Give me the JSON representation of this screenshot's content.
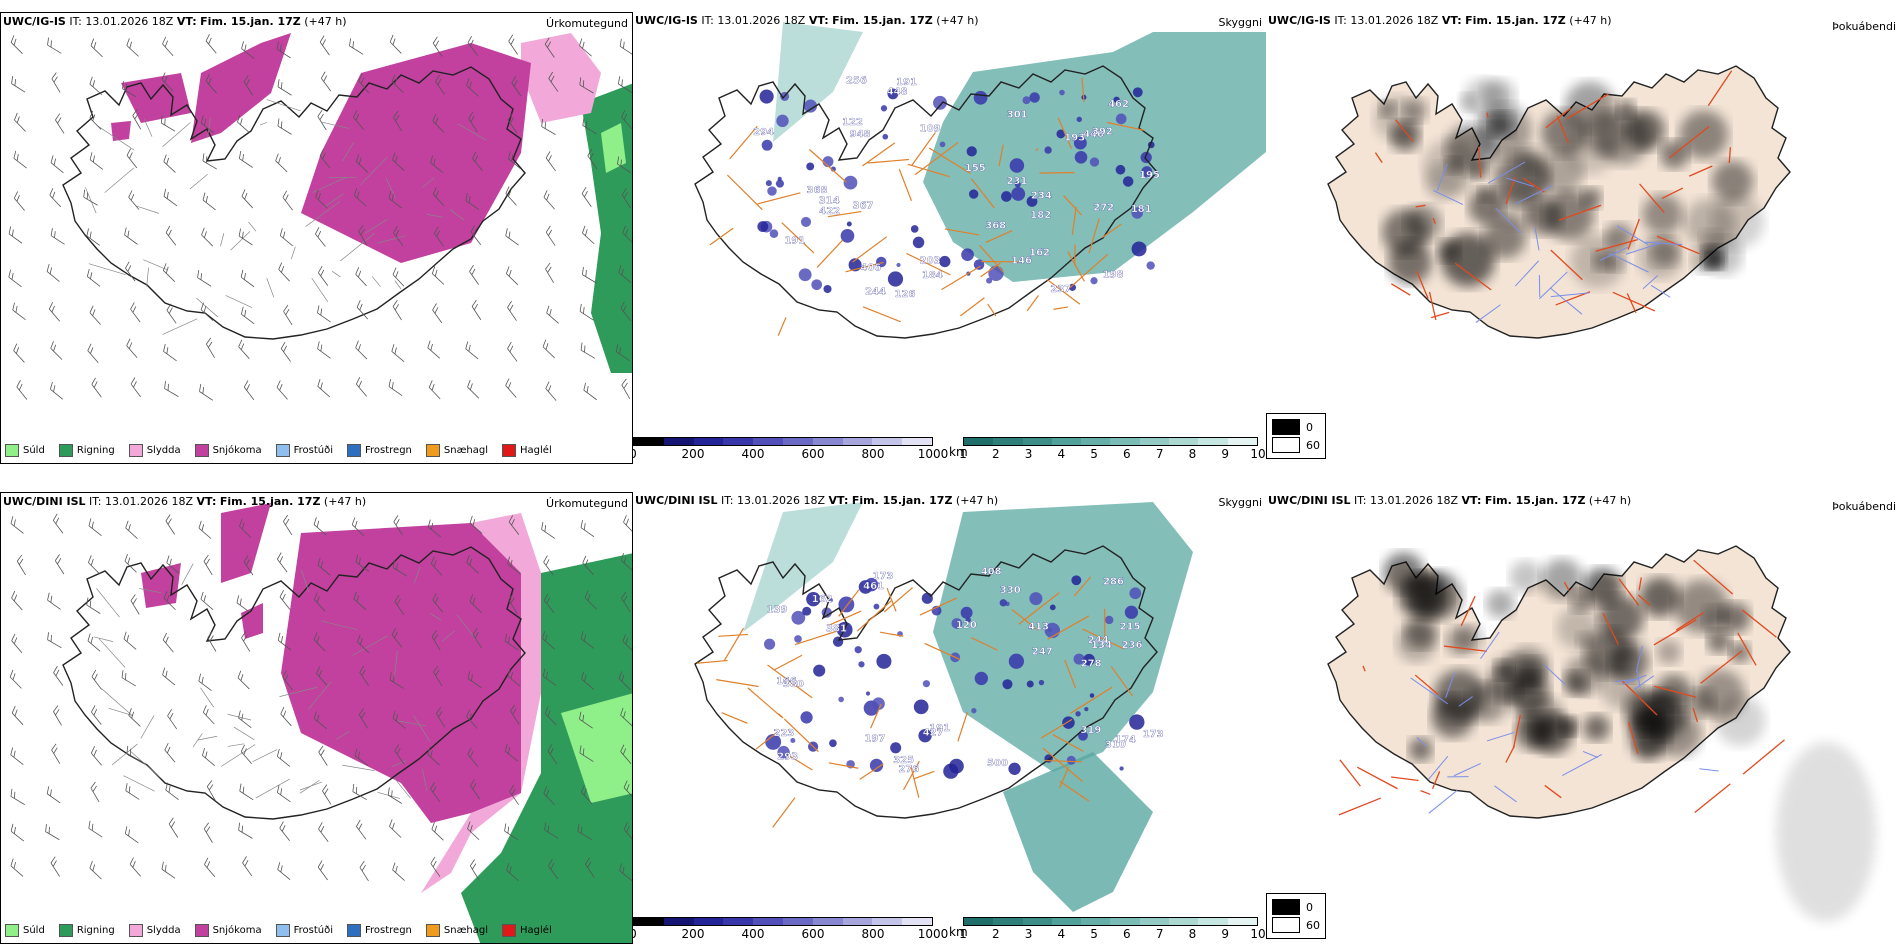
{
  "rows": [
    {
      "model": "UWC/IG-IS",
      "it_label": "IT:",
      "it_value": "13.01.2026 18Z",
      "vt_label": "VT:",
      "vt_value": "Fim. 15.jan. 17Z",
      "lead": "(+47 h)"
    },
    {
      "model": "UWC/DINI ISL",
      "it_label": "IT:",
      "it_value": "13.01.2026 18Z",
      "vt_label": "VT:",
      "vt_value": "Fim. 15.jan. 17Z",
      "lead": "(+47 h)"
    }
  ],
  "panel_titles": {
    "precip": "Úrkomutegund",
    "visibility": "Skyggni",
    "fog": "Þokuábendi"
  },
  "precip_legend": [
    {
      "label": "Súld",
      "color": "#8ff08a"
    },
    {
      "label": "Rigning",
      "color": "#2e9b5a"
    },
    {
      "label": "Slydda",
      "color": "#f2a8d8"
    },
    {
      "label": "Snjókoma",
      "color": "#c2409e"
    },
    {
      "label": "Frostúði",
      "color": "#8fbfef"
    },
    {
      "label": "Frostregn",
      "color": "#2f6fc0"
    },
    {
      "label": "Snæhagl",
      "color": "#f09a1e"
    },
    {
      "label": "Haglél",
      "color": "#e01818"
    }
  ],
  "ceiling_bar": {
    "unit": "m",
    "ticks": [
      "0",
      "200",
      "400",
      "600",
      "800",
      "1000"
    ],
    "colors": [
      "#000000",
      "#141472",
      "#232398",
      "#3737aa",
      "#5050b8",
      "#6a6ac4",
      "#8888d0",
      "#a6a6dc",
      "#c4c4e8",
      "#e2e2f4"
    ]
  },
  "vis_bar": {
    "unit": "km",
    "ticks": [
      "1",
      "2",
      "3",
      "4",
      "5",
      "6",
      "7",
      "8",
      "9",
      "10"
    ],
    "colors": [
      "#1f6e6a",
      "#2e7e79",
      "#3e8e88",
      "#52a09a",
      "#66aea8",
      "#7cbcb6",
      "#94cac4",
      "#acd8d2",
      "#c6e6e2",
      "#e4f4f2"
    ]
  },
  "fog_legend": {
    "high": "0",
    "low": "60"
  },
  "ceiling_labels_top": [
    "181",
    "146",
    "193",
    "109",
    "122",
    "244",
    "155",
    "198",
    "195",
    "231",
    "294",
    "256",
    "191",
    "272",
    "191",
    "314",
    "446",
    "162",
    "948",
    "367",
    "368",
    "301",
    "184",
    "126",
    "182",
    "234",
    "448",
    "237",
    "203",
    "392",
    "368",
    "462",
    "406",
    "422"
  ],
  "ceiling_labels_bottom": [
    "319",
    "215",
    "174",
    "120",
    "293",
    "173",
    "244",
    "197",
    "286",
    "381",
    "236",
    "139",
    "278",
    "276",
    "223",
    "162",
    "310",
    "461",
    "191",
    "134",
    "166",
    "380",
    "500",
    "247",
    "325",
    "427",
    "408",
    "330",
    "413",
    "173"
  ],
  "colors": {
    "land_outline": "#222222",
    "roads_orange": "#e0802a",
    "fog_land": "#f3e4d6",
    "fog_roads": "#e04a1e",
    "fog_rivers": "#7a8fe8"
  }
}
